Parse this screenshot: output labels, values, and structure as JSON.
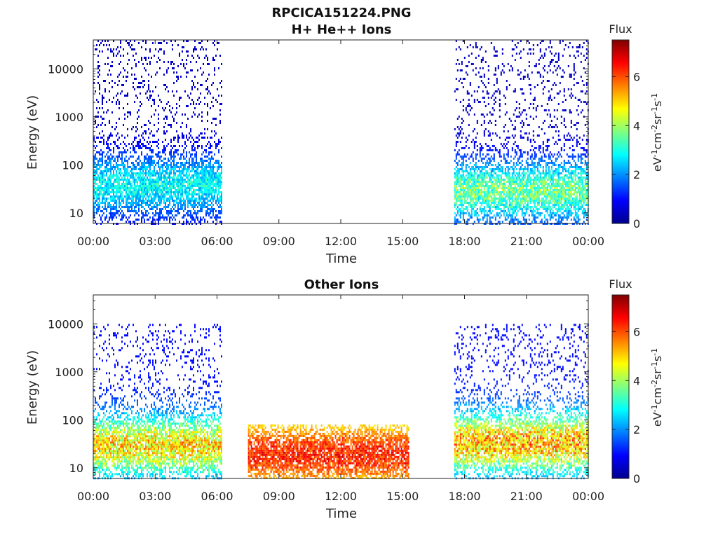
{
  "figure": {
    "title": "RPCICA151224.PNG"
  },
  "chart_data": [
    {
      "type": "heatmap",
      "title": "H+ He++ Ions",
      "xlabel": "Time",
      "ylabel": "Energy (eV)",
      "x_ticks": [
        "00:00",
        "03:00",
        "06:00",
        "09:00",
        "12:00",
        "15:00",
        "18:00",
        "21:00",
        "00:00"
      ],
      "x_range_hours": [
        0,
        24
      ],
      "y_scale": "log",
      "y_ticks": [
        "10",
        "100",
        "1000",
        "10000"
      ],
      "y_range": [
        6,
        40000
      ],
      "colorbar": {
        "title": "Flux",
        "label": "eV-1cm-2sr-1s-1",
        "ticks": [
          "0",
          "2",
          "4",
          "6"
        ],
        "range": [
          0,
          7.5
        ],
        "colormap": "jet"
      },
      "grid": false,
      "data_blocks": [
        {
          "t_start": 0.0,
          "t_end": 6.2,
          "e_min": 6,
          "e_max": 40000,
          "flux_low": 0.5,
          "flux_high": 3.5,
          "peak_energy": 40
        },
        {
          "t_start": 17.5,
          "t_end": 24.0,
          "e_min": 6,
          "e_max": 40000,
          "flux_low": 0.5,
          "flux_high": 4.5,
          "peak_energy": 30
        }
      ]
    },
    {
      "type": "heatmap",
      "title": "Other Ions",
      "xlabel": "Time",
      "ylabel": "Energy (eV)",
      "x_ticks": [
        "00:00",
        "03:00",
        "06:00",
        "09:00",
        "12:00",
        "15:00",
        "18:00",
        "21:00",
        "00:00"
      ],
      "x_range_hours": [
        0,
        24
      ],
      "y_scale": "log",
      "y_ticks": [
        "10",
        "100",
        "1000",
        "10000"
      ],
      "y_range": [
        6,
        40000
      ],
      "colorbar": {
        "title": "Flux",
        "label": "eV-1cm-2sr-1s-1",
        "ticks": [
          "0",
          "2",
          "4",
          "6"
        ],
        "range": [
          0,
          7.5
        ],
        "colormap": "jet"
      },
      "grid": false,
      "data_blocks": [
        {
          "t_start": 0.0,
          "t_end": 6.2,
          "e_min": 6,
          "e_max": 10000,
          "flux_low": 1.0,
          "flux_high": 6.0,
          "peak_energy": 30
        },
        {
          "t_start": 7.5,
          "t_end": 15.3,
          "e_min": 6,
          "e_max": 80,
          "flux_low": 4.0,
          "flux_high": 7.0,
          "peak_energy": 20
        },
        {
          "t_start": 17.5,
          "t_end": 24.0,
          "e_min": 6,
          "e_max": 10000,
          "flux_low": 1.0,
          "flux_high": 6.5,
          "peak_energy": 35
        }
      ]
    }
  ]
}
